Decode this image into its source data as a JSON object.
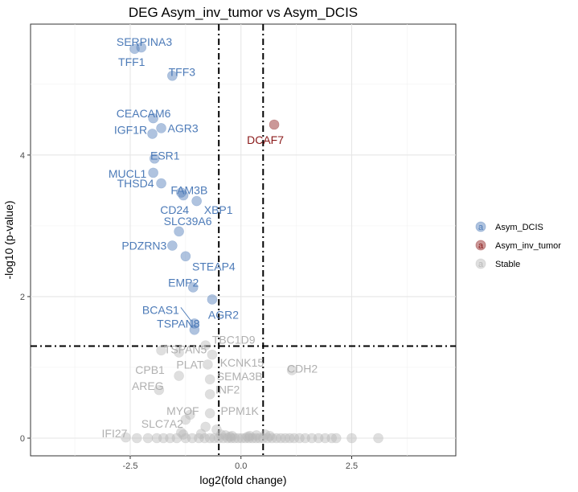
{
  "chart_data": {
    "type": "scatter",
    "title": "DEG Asym_inv_tumor vs Asym_DCIS",
    "xlabel": "log2(fold change)",
    "ylabel": "-log10 (p-value)",
    "xlim": [
      -4.75,
      4.85
    ],
    "ylim": [
      -0.25,
      5.85
    ],
    "x_ticks": [
      -2.5,
      0,
      2.5
    ],
    "x_tick_labels": [
      "-2.5",
      "0.0",
      "2.5"
    ],
    "y_ticks": [
      0,
      2,
      4
    ],
    "y_tick_labels": [
      "0",
      "2",
      "4"
    ],
    "grid": true,
    "thresholds": {
      "vertical": [
        -0.5,
        0.5
      ],
      "horizontal": 1.3
    },
    "legend": {
      "position": "right",
      "glyph": "a",
      "items": [
        {
          "label": "Asym_DCIS",
          "color": "#4d7bb8"
        },
        {
          "label": "Asym_inv_tumor",
          "color": "#8b1a1a"
        },
        {
          "label": "Stable",
          "color": "#b9b9b9"
        }
      ]
    },
    "series": [
      {
        "name": "Asym_DCIS",
        "color": "#4d7bb8",
        "points": [
          {
            "label": "SERPINA3",
            "x": -2.4,
            "y": 5.5
          },
          {
            "label": "TFF1",
            "x": -2.25,
            "y": 5.52
          },
          {
            "label": "TFF3",
            "x": -1.55,
            "y": 5.12
          },
          {
            "label": "CEACAM6",
            "x": -1.98,
            "y": 4.52
          },
          {
            "label": "IGF1R",
            "x": -2.0,
            "y": 4.3
          },
          {
            "label": "AGR3",
            "x": -1.8,
            "y": 4.38
          },
          {
            "label": "ESR1",
            "x": -1.95,
            "y": 3.95
          },
          {
            "label": "MUCL1",
            "x": -1.98,
            "y": 3.75
          },
          {
            "label": "THSD4",
            "x": -1.8,
            "y": 3.6
          },
          {
            "label": "FAM3B",
            "x": -1.35,
            "y": 3.47
          },
          {
            "label": "CD24",
            "x": -1.3,
            "y": 3.43
          },
          {
            "label": "XBP1",
            "x": -1.0,
            "y": 3.35
          },
          {
            "label": "SLC39A6",
            "x": -1.4,
            "y": 2.92
          },
          {
            "label": "PDZRN3",
            "x": -1.55,
            "y": 2.72
          },
          {
            "label": "STEAP4",
            "x": -1.25,
            "y": 2.57
          },
          {
            "label": "EMP2",
            "x": -1.08,
            "y": 2.13
          },
          {
            "label": "AGR2",
            "x": -0.65,
            "y": 1.96
          },
          {
            "label": "BCAS1",
            "x": -1.05,
            "y": 1.62
          },
          {
            "label": "TSPAN8",
            "x": -1.05,
            "y": 1.53
          }
        ]
      },
      {
        "name": "Asym_inv_tumor",
        "color": "#8b1a1a",
        "points": [
          {
            "label": "DCAF7",
            "x": 0.75,
            "y": 4.43
          }
        ]
      },
      {
        "name": "Stable",
        "color": "#b9b9b9",
        "points": [
          {
            "label": "TSPAN5",
            "x": -1.4,
            "y": 1.21
          },
          {
            "label": "TBC1D9",
            "x": -0.8,
            "y": 1.31
          },
          {
            "label": "CPB1",
            "x": -1.8,
            "y": 1.24
          },
          {
            "label": "KCNK15",
            "x": -0.65,
            "y": 1.18
          },
          {
            "label": "CDH2",
            "x": 1.15,
            "y": 0.96
          },
          {
            "label": "PLAT",
            "x": -0.75,
            "y": 1.04
          },
          {
            "label": "SEMA3B",
            "x": -0.7,
            "y": 0.83
          },
          {
            "label": "AREG",
            "x": -1.85,
            "y": 0.68
          },
          {
            "label": "INF2",
            "x": -0.7,
            "y": 0.62
          },
          {
            "label": "MYOF",
            "x": -1.15,
            "y": 0.33
          },
          {
            "label": "PPM1K",
            "x": -0.7,
            "y": 0.35
          },
          {
            "label": "SLC7A2",
            "x": -1.25,
            "y": 0.26
          },
          {
            "label": "IFI27",
            "x": -2.6,
            "y": 0.01
          },
          {
            "label": "",
            "x": -1.4,
            "y": 0.88
          },
          {
            "label": "",
            "x": -0.8,
            "y": 0.16
          },
          {
            "label": "",
            "x": -0.55,
            "y": 0.12
          },
          {
            "label": "",
            "x": -1.35,
            "y": 0.08
          },
          {
            "label": "",
            "x": -1.3,
            "y": 0.05
          },
          {
            "label": "",
            "x": -0.9,
            "y": 0.06
          },
          {
            "label": "",
            "x": -0.45,
            "y": 0.05
          },
          {
            "label": "",
            "x": -0.35,
            "y": 0.04
          },
          {
            "label": "",
            "x": -0.2,
            "y": 0.03
          },
          {
            "label": "",
            "x": 0.2,
            "y": 0.03
          },
          {
            "label": "",
            "x": 0.35,
            "y": 0.04
          },
          {
            "label": "",
            "x": 0.55,
            "y": 0.05
          },
          {
            "label": "",
            "x": -2.35,
            "y": 0.0
          },
          {
            "label": "",
            "x": -1.9,
            "y": 0.0
          },
          {
            "label": "",
            "x": -1.75,
            "y": 0.0
          },
          {
            "label": "",
            "x": -1.6,
            "y": 0.0
          },
          {
            "label": "",
            "x": -1.45,
            "y": 0.0
          },
          {
            "label": "",
            "x": -1.25,
            "y": 0.0
          },
          {
            "label": "",
            "x": -1.1,
            "y": 0.0
          },
          {
            "label": "",
            "x": -0.95,
            "y": 0.0
          },
          {
            "label": "",
            "x": -0.82,
            "y": 0.0
          },
          {
            "label": "",
            "x": -0.7,
            "y": 0.0
          },
          {
            "label": "",
            "x": -0.6,
            "y": 0.0
          },
          {
            "label": "",
            "x": -0.5,
            "y": 0.0
          },
          {
            "label": "",
            "x": -0.4,
            "y": 0.0
          },
          {
            "label": "",
            "x": -0.3,
            "y": 0.0
          },
          {
            "label": "",
            "x": -0.22,
            "y": 0.0
          },
          {
            "label": "",
            "x": -0.14,
            "y": 0.0
          },
          {
            "label": "",
            "x": -0.06,
            "y": 0.0
          },
          {
            "label": "",
            "x": 0.02,
            "y": 0.0
          },
          {
            "label": "",
            "x": 0.1,
            "y": 0.0
          },
          {
            "label": "",
            "x": 0.18,
            "y": 0.0
          },
          {
            "label": "",
            "x": 0.26,
            "y": 0.0
          },
          {
            "label": "",
            "x": 0.34,
            "y": 0.0
          },
          {
            "label": "",
            "x": 0.42,
            "y": 0.0
          },
          {
            "label": "",
            "x": 0.5,
            "y": 0.0
          },
          {
            "label": "",
            "x": 0.6,
            "y": 0.0
          },
          {
            "label": "",
            "x": 0.7,
            "y": 0.0
          },
          {
            "label": "",
            "x": 0.8,
            "y": 0.0
          },
          {
            "label": "",
            "x": 0.9,
            "y": 0.0
          },
          {
            "label": "",
            "x": 1.0,
            "y": 0.0
          },
          {
            "label": "",
            "x": 1.1,
            "y": 0.0
          },
          {
            "label": "",
            "x": 1.2,
            "y": 0.0
          },
          {
            "label": "",
            "x": 1.32,
            "y": 0.0
          },
          {
            "label": "",
            "x": 1.45,
            "y": 0.0
          },
          {
            "label": "",
            "x": 1.6,
            "y": 0.0
          },
          {
            "label": "",
            "x": 1.75,
            "y": 0.0
          },
          {
            "label": "",
            "x": 1.9,
            "y": 0.0
          },
          {
            "label": "",
            "x": 2.05,
            "y": 0.0
          },
          {
            "label": "",
            "x": 2.15,
            "y": 0.0
          },
          {
            "label": "",
            "x": 2.5,
            "y": 0.0
          },
          {
            "label": "",
            "x": 3.1,
            "y": 0.0
          },
          {
            "label": "",
            "x": -2.1,
            "y": 0.0
          },
          {
            "label": "",
            "x": -0.25,
            "y": 0.02
          },
          {
            "label": "",
            "x": 0.15,
            "y": 0.02
          },
          {
            "label": "",
            "x": 0.65,
            "y": 0.03
          }
        ]
      }
    ]
  }
}
